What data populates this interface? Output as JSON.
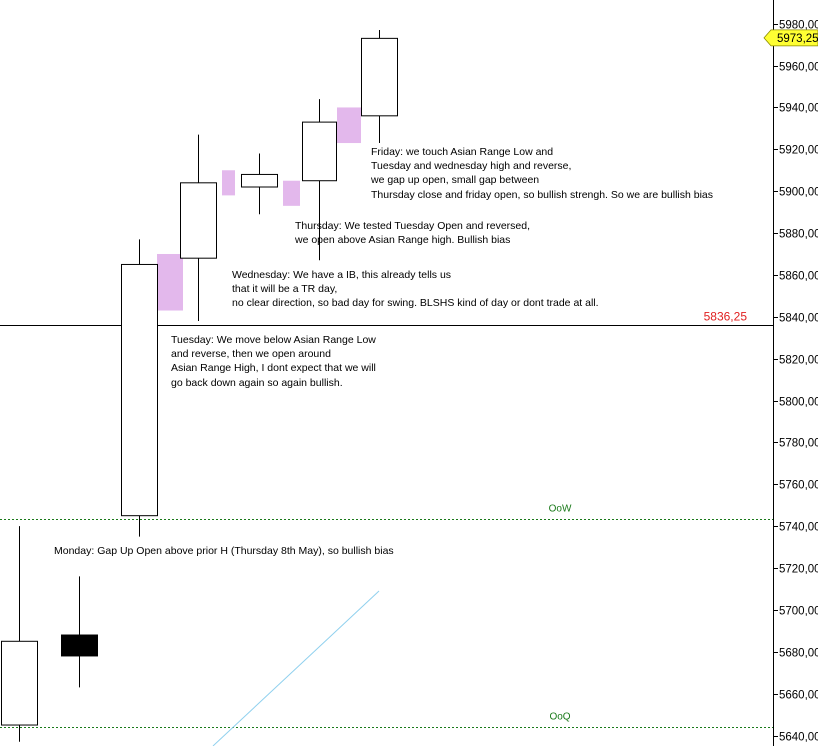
{
  "chart_data": {
    "type": "candlestick",
    "y_axis": {
      "min": 5640,
      "max": 5980,
      "tick_step": 20,
      "position": "right",
      "decimal_separator": ","
    },
    "candles": [
      {
        "o": 5685,
        "h": 5740,
        "l": 5637,
        "c": 5645,
        "color": "#ffffff"
      },
      {
        "o": 5678,
        "h": 5716,
        "l": 5663,
        "c": 5688,
        "color": "#000000"
      },
      {
        "o": 5745,
        "h": 5877,
        "l": 5735,
        "c": 5865,
        "color": "#ffffff"
      },
      {
        "o": 5868,
        "h": 5927,
        "l": 5838,
        "c": 5904,
        "color": "#ffffff"
      },
      {
        "o": 5902,
        "h": 5918,
        "l": 5889,
        "c": 5908,
        "color": "#ffffff"
      },
      {
        "o": 5905,
        "h": 5944,
        "l": 5867,
        "c": 5933,
        "color": "#ffffff"
      },
      {
        "o": 5936,
        "h": 5977,
        "l": 5923,
        "c": 5973,
        "color": "#ffffff"
      }
    ],
    "session_boxes": [
      {
        "from": 5843,
        "to": 5870,
        "color": "#e3b8ec"
      },
      {
        "from": 5898,
        "to": 5910,
        "color": "#e3b8ec"
      },
      {
        "from": 5893,
        "to": 5905,
        "color": "#e3b8ec"
      },
      {
        "from": 5923,
        "to": 5940,
        "color": "#e3b8ec"
      }
    ],
    "levels": [
      {
        "price": 5836.25,
        "label": "5836,25",
        "style": "solid",
        "color": "#000000",
        "label_color": "#e02020"
      },
      {
        "price": 5743.5,
        "label": "OoW",
        "style": "dotted",
        "color": "#1a7a1a",
        "label_color": "#1a7a1a"
      },
      {
        "price": 5644,
        "label": "OoQ",
        "style": "dotted",
        "color": "#1a7a1a",
        "label_color": "#1a7a1a"
      }
    ],
    "trendline": {
      "from": 5635,
      "to": 5709,
      "color": "#8fd0ee"
    },
    "last_price": {
      "value": 5973.25,
      "label": "5973,25",
      "color": "#ffff33"
    }
  },
  "annotations": {
    "monday": [
      "Monday: Gap Up Open above prior H (Thursday 8th May), so bullish bias"
    ],
    "tuesday": [
      "Tuesday: We move below Asian Range Low",
      "and reverse, then we open around",
      "Asian Range High, I dont expect that we will",
      "go back down again so again bullish."
    ],
    "wednesday": [
      "Wednesday: We have a IB, this already tells us",
      "that it will be a TR day,",
      "no clear direction, so bad day for swing. BLSHS kind of day or dont trade at all."
    ],
    "thursday": [
      "Thursday: We tested Tuesday Open and reversed,",
      "we open above Asian Range high. Bullish bias"
    ],
    "friday": [
      "Friday: we touch Asian Range Low and",
      "Tuesday and wednesday high and reverse,",
      "we gap up open, small gap between",
      "Thursday close and friday open, so bullish strengh. So we are bullish bias"
    ]
  }
}
